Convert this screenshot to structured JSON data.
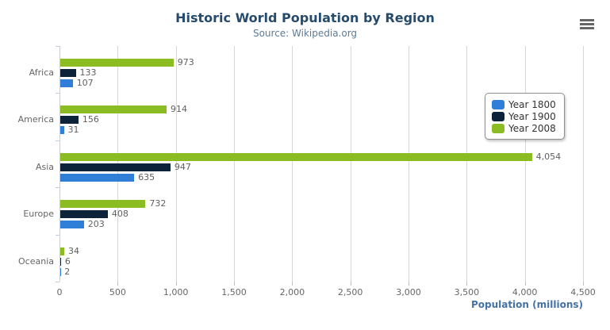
{
  "chart_data": {
    "type": "bar",
    "orientation": "horizontal",
    "title": "Historic World Population by Region",
    "subtitle": "Source: Wikipedia.org",
    "categories": [
      "Africa",
      "America",
      "Asia",
      "Europe",
      "Oceania"
    ],
    "series": [
      {
        "name": "Year 1800",
        "color": "#2f7ed8",
        "values": [
          107,
          31,
          635,
          203,
          2
        ]
      },
      {
        "name": "Year 1900",
        "color": "#0d233a",
        "values": [
          133,
          156,
          947,
          408,
          6
        ]
      },
      {
        "name": "Year 2008",
        "color": "#8bbc21",
        "values": [
          973,
          914,
          4054,
          732,
          34
        ]
      }
    ],
    "bar_order_top_to_bottom": [
      "Year 2008",
      "Year 1900",
      "Year 1800"
    ],
    "data_labels": true,
    "xlabel": "Population (millions)",
    "ylabel": "",
    "xlim": [
      0,
      4500
    ],
    "tick_interval": 500,
    "tick_labels": [
      "0",
      "500",
      "1,000",
      "1,500",
      "2,000",
      "2,500",
      "3,000",
      "3,500",
      "4,000",
      "4,500"
    ],
    "grid": true,
    "legend_position": "right",
    "legend_items": [
      "Year 1800",
      "Year 1900",
      "Year 2008"
    ]
  },
  "colors": {
    "title": "#274b6d",
    "subtitle": "#5d7b96",
    "axis_title": "#4572a7",
    "gridline": "#d8d8d8",
    "axis_line": "#c0d0e0",
    "labels": "#666666",
    "data_label": "#606060"
  },
  "context_menu": {
    "icon": "hamburger-icon"
  }
}
